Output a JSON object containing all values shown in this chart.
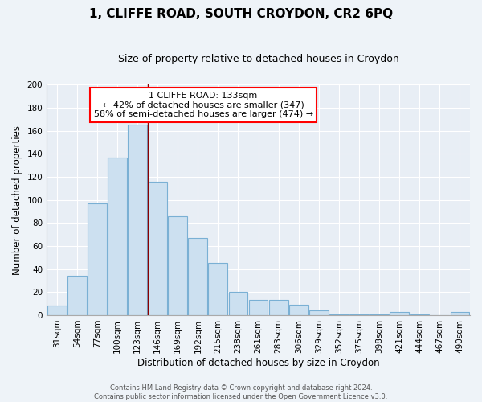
{
  "title": "1, CLIFFE ROAD, SOUTH CROYDON, CR2 6PQ",
  "subtitle": "Size of property relative to detached houses in Croydon",
  "xlabel": "Distribution of detached houses by size in Croydon",
  "ylabel": "Number of detached properties",
  "bar_labels": [
    "31sqm",
    "54sqm",
    "77sqm",
    "100sqm",
    "123sqm",
    "146sqm",
    "169sqm",
    "192sqm",
    "215sqm",
    "238sqm",
    "261sqm",
    "283sqm",
    "306sqm",
    "329sqm",
    "352sqm",
    "375sqm",
    "398sqm",
    "421sqm",
    "444sqm",
    "467sqm",
    "490sqm"
  ],
  "bar_values": [
    8,
    34,
    97,
    137,
    165,
    116,
    86,
    67,
    45,
    20,
    13,
    13,
    9,
    4,
    1,
    1,
    1,
    3,
    1,
    0,
    3
  ],
  "bar_color": "#cce0f0",
  "bar_edge_color": "#7ab0d4",
  "ylim": [
    0,
    200
  ],
  "yticks": [
    0,
    20,
    40,
    60,
    80,
    100,
    120,
    140,
    160,
    180,
    200
  ],
  "property_label": "1 CLIFFE ROAD: 133sqm",
  "annotation_line1": "← 42% of detached houses are smaller (347)",
  "annotation_line2": "58% of semi-detached houses are larger (474) →",
  "footer_line1": "Contains HM Land Registry data © Crown copyright and database right 2024.",
  "footer_line2": "Contains public sector information licensed under the Open Government Licence v3.0.",
  "background_color": "#eef3f8",
  "plot_bg_color": "#e8eef5",
  "grid_color": "#ffffff",
  "title_fontsize": 11,
  "subtitle_fontsize": 9,
  "axis_label_fontsize": 8.5,
  "tick_fontsize": 7.5,
  "annotation_fontsize": 8,
  "footer_fontsize": 6
}
